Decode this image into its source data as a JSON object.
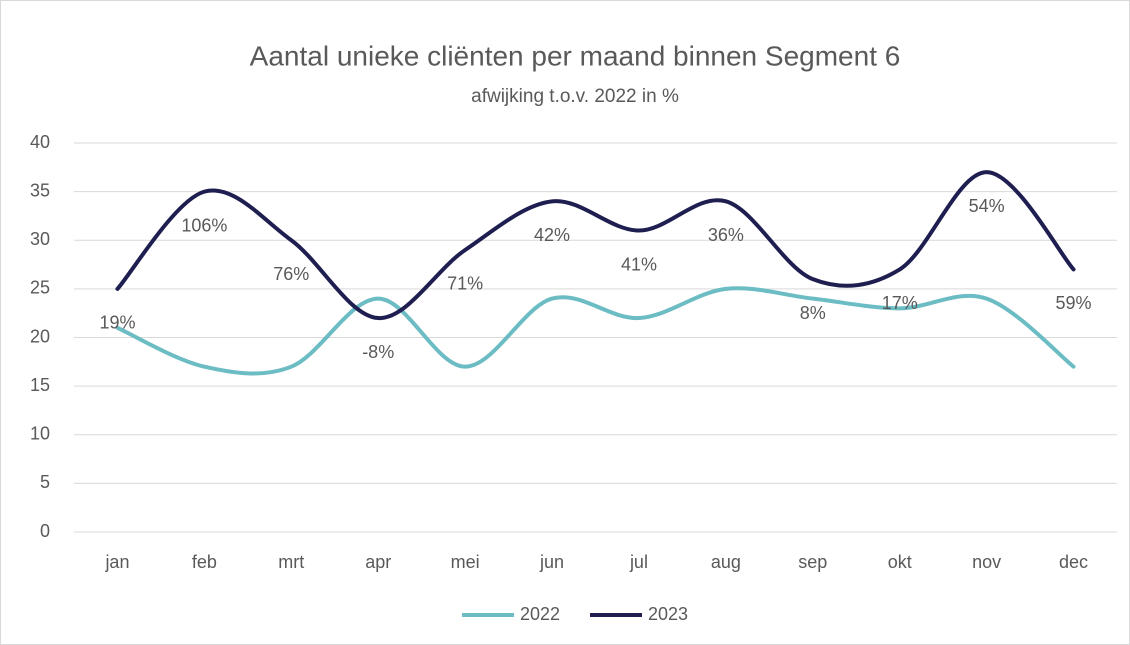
{
  "chart_data": {
    "type": "line",
    "title": "Aantal unieke cliënten per maand binnen Segment 6",
    "subtitle": "afwijking t.o.v. 2022 in %",
    "categories": [
      "jan",
      "feb",
      "mrt",
      "apr",
      "mei",
      "jun",
      "jul",
      "aug",
      "sep",
      "okt",
      "nov",
      "dec"
    ],
    "series": [
      {
        "name": "2022",
        "color": "#6cbcc4",
        "values": [
          21,
          17,
          17,
          24,
          17,
          24,
          22,
          25,
          24,
          23,
          24,
          17
        ]
      },
      {
        "name": "2023",
        "color": "#1f1e50",
        "values": [
          25,
          35,
          30,
          22,
          29,
          34,
          31,
          34,
          26,
          27,
          37,
          27
        ]
      }
    ],
    "annotations": [
      "19%",
      "106%",
      "76%",
      "-8%",
      "71%",
      "42%",
      "41%",
      "36%",
      "8%",
      "17%",
      "54%",
      "59%"
    ],
    "ylim": [
      0,
      40
    ],
    "yticks": [
      0,
      5,
      10,
      15,
      20,
      25,
      30,
      35,
      40
    ],
    "grid": true,
    "legend": "bottom"
  }
}
